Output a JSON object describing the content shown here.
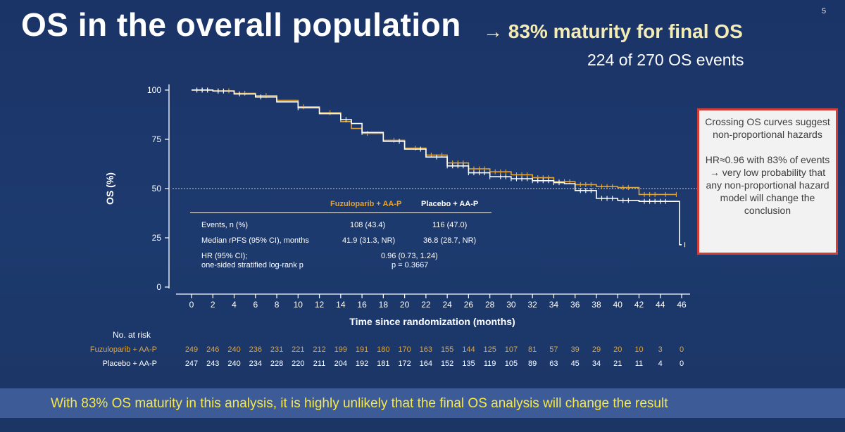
{
  "slide": {
    "title": "OS in the overall population",
    "subtitle": "→ 83% maturity for final OS",
    "events_note": "224 of 270 OS events",
    "page_number": "5",
    "background_color": "#1c3566"
  },
  "callout": {
    "paragraph1": "Crossing OS curves suggest non-proportional hazards",
    "paragraph2": "HR≈0.96 with 83% of events → very low probability that any non-proportional hazard model will change the conclusion",
    "border_color": "#d33d35"
  },
  "stats_table": {
    "header_fuzuloparib": "Fuzuloparib + AA-P",
    "header_placebo": "Placebo + AA-P",
    "events_label": "Events, n (%)",
    "events_fuzuloparib": "108 (43.4)",
    "events_placebo": "116 (47.0)",
    "median_label": "Median rPFS (95% CI), months",
    "median_fuzuloparib": "41.9 (31.3, NR)",
    "median_placebo": "36.8 (28.7, NR)",
    "hr_label_line1": "HR (95% CI);",
    "hr_label_line2": "one-sided stratified log-rank p",
    "hr_value": "0.96 (0.73, 1.24)",
    "p_value": "p = 0.3667"
  },
  "risk_table": {
    "title": "No. at risk",
    "fuzuloparib_label": "Fuzuloparib + AA-P",
    "placebo_label": "Placebo + AA-P",
    "fuzuloparib": [
      "249",
      "246",
      "240",
      "236",
      "231",
      "221",
      "212",
      "199",
      "191",
      "180",
      "170",
      "163",
      "155",
      "144",
      "125",
      "107",
      "81",
      "57",
      "39",
      "29",
      "20",
      "10",
      "3",
      "0"
    ],
    "placebo": [
      "247",
      "243",
      "240",
      "234",
      "228",
      "220",
      "211",
      "204",
      "192",
      "181",
      "172",
      "164",
      "152",
      "135",
      "119",
      "105",
      "89",
      "63",
      "45",
      "34",
      "21",
      "11",
      "4",
      "0"
    ]
  },
  "banner": {
    "text": "With 83% OS maturity in this analysis, it is highly unlikely that the final OS analysis will change the result"
  },
  "chart_data": {
    "type": "line",
    "xlabel": "Time since randomization (months)",
    "ylabel": "OS (%)",
    "xlim": [
      0,
      46
    ],
    "ylim": [
      0,
      100
    ],
    "x_ticks": [
      "0",
      "2",
      "4",
      "6",
      "8",
      "10",
      "12",
      "14",
      "16",
      "18",
      "20",
      "22",
      "24",
      "26",
      "28",
      "30",
      "32",
      "34",
      "36",
      "38",
      "40",
      "42",
      "44",
      "46"
    ],
    "y_ticks": [
      "0",
      "25",
      "50",
      "75",
      "100"
    ],
    "reference_line_y": 50,
    "grid": false,
    "series": [
      {
        "name": "Fuzuloparib + AA-P",
        "color": "#e0a43a",
        "points": [
          [
            0,
            100
          ],
          [
            2,
            99.6
          ],
          [
            4,
            98.4
          ],
          [
            6,
            97.2
          ],
          [
            8,
            94.8
          ],
          [
            10,
            91.5
          ],
          [
            12,
            88.5
          ],
          [
            14,
            84
          ],
          [
            15,
            80.5
          ],
          [
            16,
            78
          ],
          [
            18,
            74.5
          ],
          [
            20,
            70.5
          ],
          [
            22,
            67
          ],
          [
            24,
            63
          ],
          [
            26,
            60
          ],
          [
            28,
            58.5
          ],
          [
            30,
            57
          ],
          [
            32,
            55.5
          ],
          [
            34,
            53.5
          ],
          [
            36,
            52
          ],
          [
            38,
            51
          ],
          [
            40,
            50.5
          ],
          [
            41.5,
            50.5
          ],
          [
            42,
            47
          ],
          [
            44,
            47
          ],
          [
            45.5,
            47
          ]
        ],
        "censor_x": [
          0.5,
          1,
          1.5,
          2.5,
          3.5,
          5,
          7,
          10.5,
          13,
          16.5,
          19,
          21,
          22.5,
          23.5,
          24.5,
          25,
          25.5,
          26.5,
          27,
          27.5,
          28.5,
          29,
          29.5,
          30.5,
          31,
          31.5,
          32.5,
          33,
          33.5,
          34.5,
          35,
          35.5,
          36.5,
          37,
          37.5,
          38.5,
          39,
          39.5,
          40.5,
          41,
          42.5,
          43,
          43.5,
          44.5,
          45.5
        ]
      },
      {
        "name": "Placebo + AA-P",
        "color": "#ffffff",
        "points": [
          [
            0,
            100
          ],
          [
            2,
            99.5
          ],
          [
            4,
            98
          ],
          [
            6,
            96.5
          ],
          [
            8,
            94
          ],
          [
            10,
            91
          ],
          [
            12,
            88
          ],
          [
            14,
            85
          ],
          [
            15,
            83
          ],
          [
            16,
            78.5
          ],
          [
            18,
            74
          ],
          [
            20,
            70
          ],
          [
            22,
            66
          ],
          [
            24,
            61.5
          ],
          [
            26,
            58
          ],
          [
            28,
            56
          ],
          [
            30,
            55
          ],
          [
            32,
            54
          ],
          [
            34,
            53
          ],
          [
            35,
            52.5
          ],
          [
            36,
            49
          ],
          [
            38,
            45
          ],
          [
            40,
            44
          ],
          [
            42,
            43.5
          ],
          [
            44,
            43.5
          ],
          [
            45,
            43.5
          ],
          [
            45.8,
            21.5
          ],
          [
            46,
            21.5
          ]
        ],
        "censor_x": [
          0.5,
          1,
          1.5,
          2.5,
          3,
          4.5,
          6.5,
          10,
          14.5,
          16,
          19.5,
          21.5,
          23,
          24,
          24.5,
          25,
          25.5,
          26,
          26.5,
          27,
          27.5,
          28,
          29,
          29.5,
          30,
          30.5,
          31,
          31.5,
          32,
          32.5,
          33,
          33.5,
          34,
          34.5,
          36.5,
          37,
          37.5,
          38.5,
          39,
          39.5,
          40.5,
          41,
          42.5,
          43,
          43.5,
          44,
          44.5,
          46.3
        ]
      }
    ]
  }
}
